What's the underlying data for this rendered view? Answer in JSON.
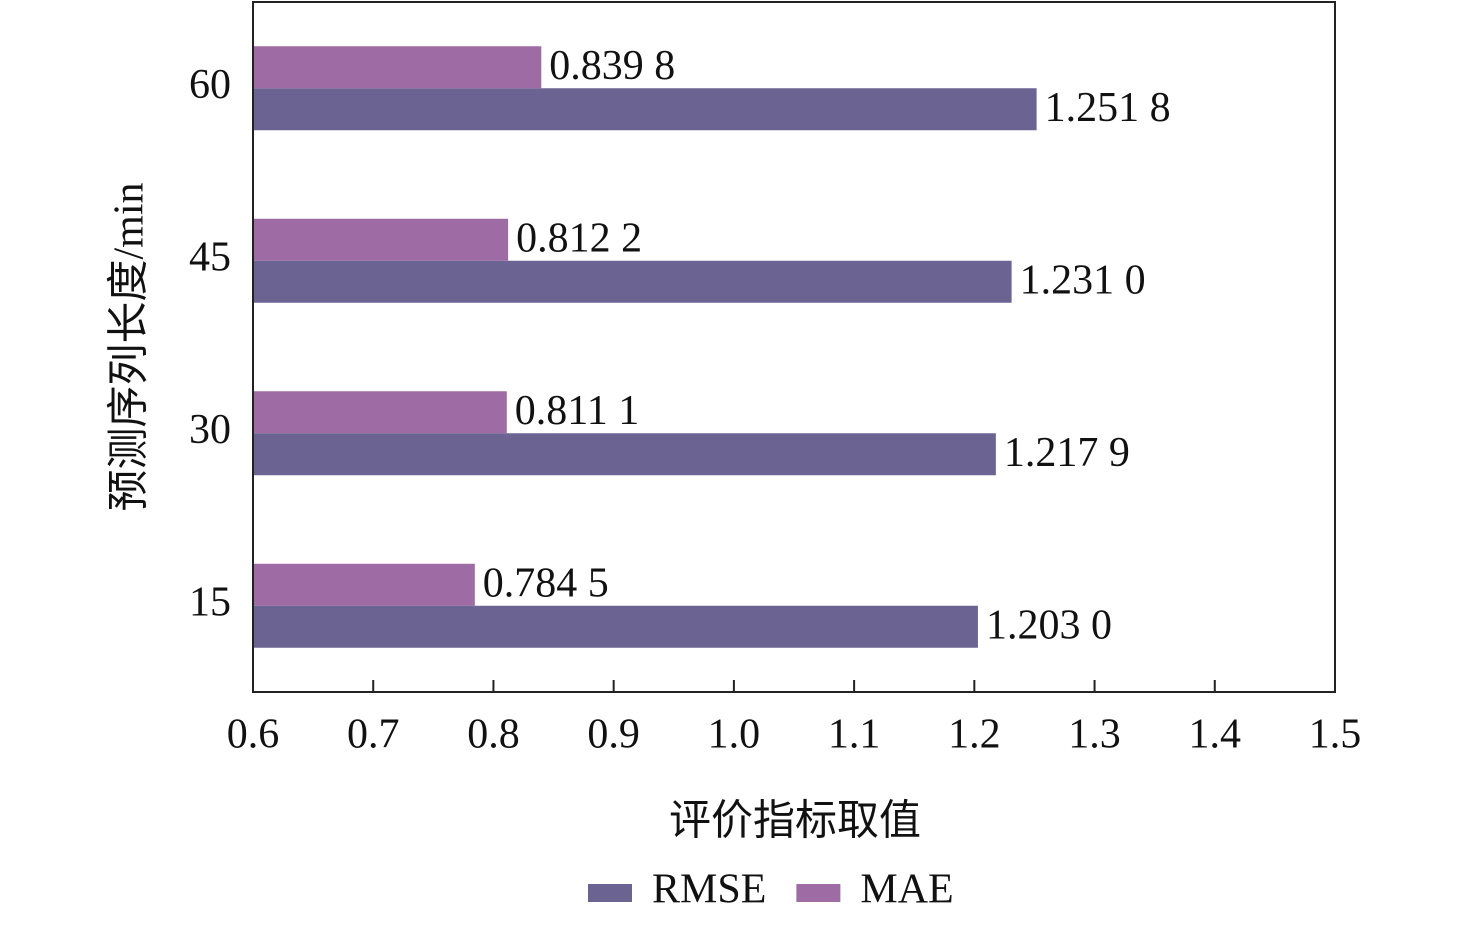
{
  "chart_data": {
    "type": "barh",
    "categories": [
      "15",
      "30",
      "45",
      "60"
    ],
    "series": [
      {
        "name": "RMSE",
        "color": "#6b6493",
        "values": [
          1.203,
          1.2179,
          1.231,
          1.2518
        ],
        "value_labels": [
          "1.203 0",
          "1.217 9",
          "1.231 0",
          "1.251 8"
        ]
      },
      {
        "name": "MAE",
        "color": "#9e6ba4",
        "values": [
          0.7845,
          0.8111,
          0.8122,
          0.8398
        ],
        "value_labels": [
          "0.784 5",
          "0.811 1",
          "0.812 2",
          "0.839 8"
        ]
      }
    ],
    "xlim": [
      0.6,
      1.5
    ],
    "xticks": [
      0.6,
      0.7,
      0.8,
      0.9,
      {
        "value": 1.0,
        "label": "1.0"
      },
      1.1,
      1.2,
      1.3,
      1.4,
      1.5
    ],
    "xlabel": "评价指标取值",
    "ylabel": "预测序列长度/min",
    "legend": "bottom"
  }
}
